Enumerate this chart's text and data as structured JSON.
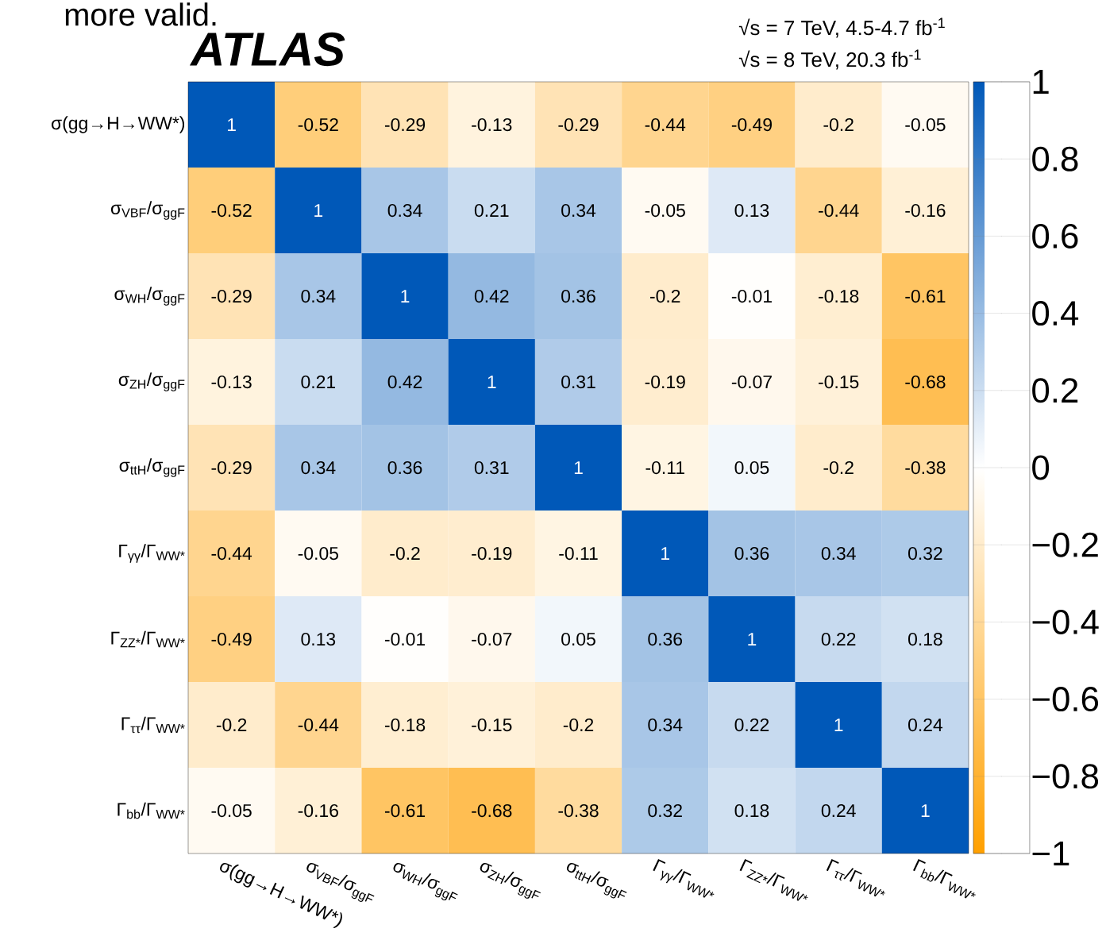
{
  "chart_data": {
    "type": "heatmap",
    "title": "ATLAS",
    "annotations": [
      "more valid.",
      "√s = 7 TeV, 4.5-4.7 fb$^{-1}$",
      "√s = 8 TeV, 20.3 fb$^{-1}$"
    ],
    "categories": [
      "σ(gg→H→WW*)",
      "σ$_{VBF}$/σ$_{ggF}$",
      "σ$_{WH}$/σ$_{ggF}$",
      "σ$_{ZH}$/σ$_{ggF}$",
      "σ$_{ttH}$/σ$_{ggF}$",
      "Γ$_{γγ}$/Γ$_{WW*}$",
      "Γ$_{ZZ*}$/Γ$_{WW*}$",
      "Γ$_{ττ}$/Γ$_{WW*}$",
      "Γ$_{bb}$/Γ$_{WW*}$"
    ],
    "y_categories": [
      "σ(gg→H→WW*)",
      "σ$_{VBF}$/σ$_{ggF}$",
      "σ$_{WH}$/σ$_{ggF}$",
      "σ$_{ZH}$/σ$_{ggF}$",
      "σ$_{ttH}$/σ$_{ggF}$",
      "Γ$_{γγ}$/Γ$_{WW*}$",
      "Γ$_{ZZ*}$/Γ$_{WW*}$",
      "Γ$_{ττ}$/Γ$_{WW*}$",
      "Γ$_{bb}$/Γ$_{WW*}$"
    ],
    "cells": [
      [
        1,
        -0.52,
        -0.29,
        -0.13,
        -0.29,
        -0.44,
        -0.49,
        -0.2,
        -0.05
      ],
      [
        -0.52,
        1,
        0.34,
        0.21,
        0.34,
        -0.05,
        0.13,
        -0.44,
        -0.16
      ],
      [
        -0.29,
        0.34,
        1,
        0.42,
        0.36,
        -0.2,
        -0.01,
        -0.18,
        -0.61
      ],
      [
        -0.13,
        0.21,
        0.42,
        1,
        0.31,
        -0.19,
        -0.07,
        -0.15,
        -0.68
      ],
      [
        -0.29,
        0.34,
        0.36,
        0.31,
        1,
        -0.11,
        0.05,
        -0.2,
        -0.38
      ],
      [
        -0.44,
        -0.05,
        -0.2,
        -0.19,
        -0.11,
        1,
        0.36,
        0.34,
        0.32
      ],
      [
        -0.49,
        0.13,
        -0.01,
        -0.07,
        0.05,
        0.36,
        1,
        0.22,
        0.18
      ],
      [
        -0.2,
        -0.44,
        -0.18,
        -0.15,
        -0.2,
        0.34,
        0.22,
        1,
        0.24
      ],
      [
        -0.05,
        -0.16,
        -0.61,
        -0.68,
        -0.38,
        0.32,
        0.18,
        0.24,
        1
      ]
    ],
    "data_labels": true,
    "clim": [
      -1,
      1
    ],
    "cticks": [
      {
        "value": -1,
        "label": "−1"
      },
      {
        "value": -0.8,
        "label": "−0.8"
      },
      {
        "value": -0.6,
        "label": "−0.6"
      },
      {
        "value": -0.4,
        "label": "−0.4"
      },
      {
        "value": -0.2,
        "label": "−0.2"
      },
      0,
      0.2,
      0.4,
      0.6,
      0.8,
      1
    ]
  }
}
